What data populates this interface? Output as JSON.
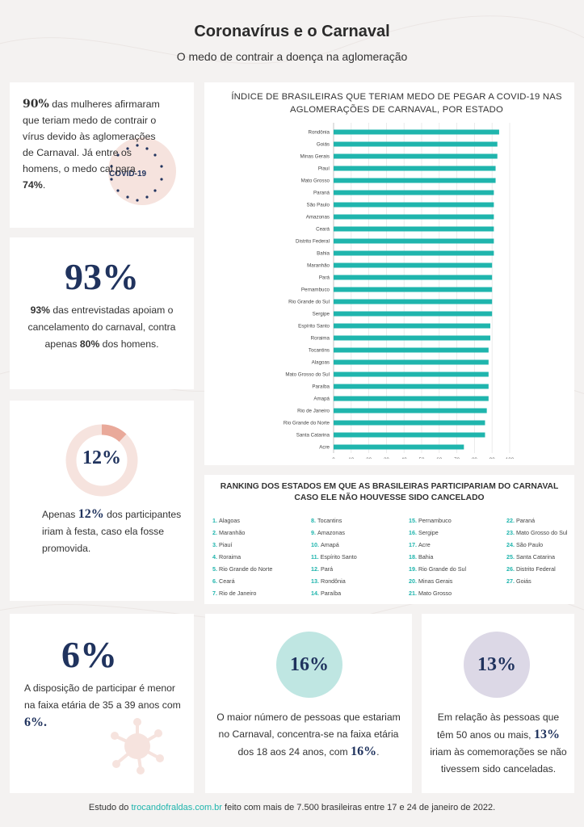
{
  "header": {
    "title": "Coronavírus e o Carnaval",
    "subtitle": "O medo de contrair a doença na aglomeração"
  },
  "card_women": {
    "pct": "90%",
    "text": " das mulheres afirmaram que teriam medo de contrair o vírus devido às aglomerações de Carnaval. Já entre os homens, o medo cai para ",
    "men_pct": "74%",
    "end": ".",
    "virus_label": "COVID-19"
  },
  "card_cancel": {
    "big": "93%",
    "bold_a": "93%",
    "text_a": " das entrevistadas apoiam o cancelamento do carnaval, contra apenas ",
    "bold_b": "80%",
    "text_b": " dos homens."
  },
  "card_party": {
    "donut_label": "12%",
    "donut_value": 0.12,
    "text_a": "Apenas ",
    "bold": "12%",
    "text_b": " dos participantes iriam à festa, caso ela fosse promovida."
  },
  "card_age35": {
    "big": "6%",
    "text": "A disposição de participar é menor na faixa etária de 35 a 39 anos com ",
    "bold": "6%.",
    "end": ""
  },
  "card_age18": {
    "circle_label": "16%",
    "text": "O maior número de pessoas que estariam no Carnaval, concentra-se na faixa etária dos 18 aos 24 anos, com ",
    "bold": "16%",
    "end": "."
  },
  "card_age50": {
    "circle_label": "13%",
    "text_a": "Em relação às pessoas que têm 50 anos ou mais, ",
    "bold": "13%",
    "text_b": " iriam às comemorações se não tivessem sido canceladas."
  },
  "colors": {
    "bar": "#1fb5ad",
    "navy": "#20335e",
    "donut_accent": "#e9a99a",
    "donut_base": "#f6e3de",
    "circle_teal": "#bfe6e2",
    "circle_lilac": "#dcd8e6"
  },
  "chart_data": {
    "type": "bar",
    "orientation": "horizontal",
    "title": "ÍNDICE DE BRASILEIRAS QUE TERIAM MEDO DE PEGAR A COVID-19 NAS AGLOMERAÇÕES DE CARNAVAL, POR ESTADO",
    "categories": [
      "Rondônia",
      "Goiás",
      "Minas Gerais",
      "Piauí",
      "Mato Grosso",
      "Paraná",
      "São Paulo",
      "Amazonas",
      "Ceará",
      "Distrito Federal",
      "Bahia",
      "Maranhão",
      "Pará",
      "Pernambuco",
      "Rio Grande do Sul",
      "Sergipe",
      "Espírito Santo",
      "Roraima",
      "Tocantins",
      "Alagoas",
      "Mato Grosso do Sul",
      "Paraíba",
      "Amapá",
      "Rio de Janeiro",
      "Rio Grande do Norte",
      "Santa Catarina",
      "Acre"
    ],
    "values": [
      94,
      93,
      93,
      92,
      92,
      91,
      91,
      91,
      91,
      91,
      91,
      90,
      90,
      90,
      90,
      90,
      89,
      89,
      88,
      88,
      88,
      88,
      88,
      87,
      86,
      86,
      74
    ],
    "xlim": [
      0,
      100
    ],
    "xticks": [
      "0",
      "10",
      "20",
      "30",
      "40",
      "50",
      "60",
      "70",
      "80",
      "90",
      "100"
    ],
    "grid": true
  },
  "ranking": {
    "title": "RANKING DOS ESTADOS EM QUE AS BRASILEIRAS PARTICIPARIAM DO CARNAVAL CASO ELE NÃO HOUVESSE SIDO CANCELADO",
    "items": [
      {
        "n": "1.",
        "s": "Alagoas"
      },
      {
        "n": "2.",
        "s": "Maranhão"
      },
      {
        "n": "3.",
        "s": "Piauí"
      },
      {
        "n": "4.",
        "s": "Roraima"
      },
      {
        "n": "5.",
        "s": "Rio Grande do Norte"
      },
      {
        "n": "6.",
        "s": "Ceará"
      },
      {
        "n": "7.",
        "s": "Rio de Janeiro"
      },
      {
        "n": "8.",
        "s": "Tocantins"
      },
      {
        "n": "9.",
        "s": "Amazonas"
      },
      {
        "n": "10.",
        "s": "Amapá"
      },
      {
        "n": "11.",
        "s": "Espírito Santo"
      },
      {
        "n": "12.",
        "s": "Pará"
      },
      {
        "n": "13.",
        "s": "Rondônia"
      },
      {
        "n": "14.",
        "s": "Paraíba"
      },
      {
        "n": "15.",
        "s": "Pernambuco"
      },
      {
        "n": "16.",
        "s": "Sergipe"
      },
      {
        "n": "17.",
        "s": "Acre"
      },
      {
        "n": "18.",
        "s": "Bahia"
      },
      {
        "n": "19.",
        "s": "Rio Grande do Sul"
      },
      {
        "n": "20.",
        "s": "Minas Gerais"
      },
      {
        "n": "21.",
        "s": "Mato Grosso"
      },
      {
        "n": "22.",
        "s": "Paraná"
      },
      {
        "n": "23.",
        "s": "Mato Grosso do Sul"
      },
      {
        "n": "24.",
        "s": "São Paulo"
      },
      {
        "n": "25.",
        "s": "Santa Catarina"
      },
      {
        "n": "26.",
        "s": "Distrito Federal"
      },
      {
        "n": "27.",
        "s": "Goiás"
      }
    ]
  },
  "footer": {
    "a": "Estudo do ",
    "link": "trocandofraldas.com.br",
    "b": " feito com mais de 7.500 brasileiras entre 17 e 24 de janeiro de 2022."
  }
}
